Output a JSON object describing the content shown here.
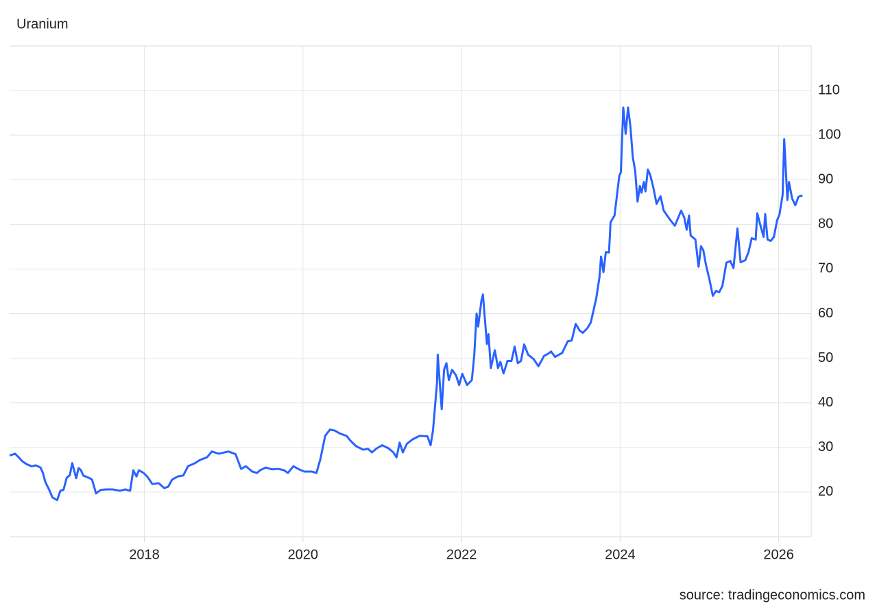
{
  "chart_data": {
    "type": "line",
    "title": "Uranium",
    "source": "source: tradingeconomics.com",
    "color": "#2962ff",
    "grid": true,
    "xlim": [
      2016.3,
      2026.41
    ],
    "ylim": [
      10,
      120
    ],
    "xticks": [
      2018,
      2020,
      2022,
      2024,
      2026
    ],
    "yticks": [
      20,
      30,
      40,
      50,
      60,
      70,
      80,
      90,
      100,
      110
    ],
    "x": [
      2016.3,
      2016.37,
      2016.42,
      2016.46,
      2016.52,
      2016.58,
      2016.63,
      2016.69,
      2016.72,
      2016.75,
      2016.8,
      2016.84,
      2016.9,
      2016.94,
      2016.98,
      2017.02,
      2017.06,
      2017.09,
      2017.14,
      2017.17,
      2017.2,
      2017.23,
      2017.3,
      2017.34,
      2017.39,
      2017.45,
      2017.52,
      2017.6,
      2017.69,
      2017.76,
      2017.82,
      2017.86,
      2017.9,
      2017.93,
      2017.99,
      2018.04,
      2018.1,
      2018.18,
      2018.25,
      2018.3,
      2018.35,
      2018.42,
      2018.49,
      2018.55,
      2018.64,
      2018.7,
      2018.79,
      2018.85,
      2018.94,
      2019.06,
      2019.15,
      2019.22,
      2019.28,
      2019.36,
      2019.42,
      2019.46,
      2019.53,
      2019.61,
      2019.69,
      2019.76,
      2019.81,
      2019.88,
      2019.95,
      2020.02,
      2020.11,
      2020.17,
      2020.22,
      2020.28,
      2020.34,
      2020.4,
      2020.47,
      2020.55,
      2020.6,
      2020.67,
      2020.76,
      2020.82,
      2020.87,
      2020.93,
      2021.0,
      2021.08,
      2021.14,
      2021.18,
      2021.22,
      2021.26,
      2021.31,
      2021.38,
      2021.47,
      2021.57,
      2021.61,
      2021.64,
      2021.69,
      2021.7,
      2021.73,
      2021.75,
      2021.78,
      2021.81,
      2021.84,
      2021.88,
      2021.93,
      2021.97,
      2022.01,
      2022.07,
      2022.13,
      2022.16,
      2022.19,
      2022.21,
      2022.25,
      2022.27,
      2022.32,
      2022.34,
      2022.37,
      2022.42,
      2022.46,
      2022.49,
      2022.53,
      2022.58,
      2022.63,
      2022.67,
      2022.71,
      2022.75,
      2022.79,
      2022.84,
      2022.91,
      2022.97,
      2023.01,
      2023.04,
      2023.1,
      2023.13,
      2023.18,
      2023.27,
      2023.34,
      2023.39,
      2023.44,
      2023.49,
      2023.53,
      2023.59,
      2023.63,
      2023.67,
      2023.7,
      2023.74,
      2023.76,
      2023.79,
      2023.82,
      2023.86,
      2023.88,
      2023.93,
      2023.99,
      2024.01,
      2024.04,
      2024.07,
      2024.1,
      2024.13,
      2024.16,
      2024.19,
      2024.22,
      2024.25,
      2024.27,
      2024.3,
      2024.32,
      2024.35,
      2024.38,
      2024.42,
      2024.46,
      2024.51,
      2024.55,
      2024.6,
      2024.65,
      2024.69,
      2024.74,
      2024.77,
      2024.81,
      2024.84,
      2024.87,
      2024.89,
      2024.95,
      2024.99,
      2025.02,
      2025.05,
      2025.08,
      2025.13,
      2025.17,
      2025.21,
      2025.25,
      2025.29,
      2025.34,
      2025.39,
      2025.43,
      2025.46,
      2025.48,
      2025.52,
      2025.58,
      2025.62,
      2025.66,
      2025.71,
      2025.73,
      2025.78,
      2025.81,
      2025.83,
      2025.86,
      2025.9,
      2025.94,
      2025.98,
      2026.01,
      2026.05,
      2026.07,
      2026.11,
      2026.13,
      2026.17,
      2026.21,
      2026.25,
      2026.3
    ],
    "values": [
      28.2,
      28.6,
      27.7,
      26.9,
      26.2,
      25.8,
      26.0,
      25.5,
      24.3,
      22.3,
      20.5,
      18.8,
      18.2,
      20.3,
      20.5,
      23.2,
      23.8,
      26.5,
      23.1,
      25.4,
      24.9,
      23.7,
      23.2,
      22.8,
      19.7,
      20.5,
      20.6,
      20.6,
      20.3,
      20.6,
      20.3,
      24.9,
      23.5,
      24.9,
      24.3,
      23.4,
      21.8,
      22.0,
      20.9,
      21.2,
      22.8,
      23.5,
      23.7,
      25.8,
      26.5,
      27.2,
      27.8,
      29.1,
      28.6,
      29.1,
      28.5,
      25.2,
      25.8,
      24.6,
      24.3,
      24.9,
      25.5,
      25.1,
      25.2,
      24.9,
      24.3,
      25.8,
      25.1,
      24.6,
      24.6,
      24.3,
      27.4,
      32.6,
      34.0,
      33.8,
      33.1,
      32.6,
      31.5,
      30.3,
      29.5,
      29.7,
      28.9,
      29.8,
      30.5,
      29.8,
      28.9,
      27.8,
      31.1,
      28.9,
      30.8,
      31.8,
      32.6,
      32.5,
      30.5,
      33.8,
      44.3,
      50.8,
      43.4,
      38.6,
      47.4,
      48.9,
      45.1,
      47.4,
      46.2,
      44.0,
      46.5,
      44.0,
      45.1,
      50.5,
      60.0,
      57.1,
      62.8,
      64.3,
      53.2,
      55.4,
      47.8,
      51.8,
      47.8,
      49.2,
      46.6,
      49.4,
      49.4,
      52.6,
      48.9,
      49.4,
      53.1,
      50.8,
      49.8,
      48.2,
      49.5,
      50.5,
      51.1,
      51.5,
      50.3,
      51.2,
      53.8,
      54.0,
      57.7,
      56.2,
      55.7,
      56.8,
      58.0,
      61.1,
      63.5,
      68.2,
      72.8,
      69.3,
      73.8,
      73.7,
      80.5,
      82.0,
      90.9,
      91.7,
      106.2,
      100.3,
      106.2,
      102.0,
      95.1,
      92.0,
      85.1,
      88.6,
      87.1,
      89.5,
      87.4,
      92.3,
      91.1,
      88.2,
      84.6,
      86.3,
      83.1,
      81.8,
      80.6,
      79.7,
      81.8,
      83.1,
      81.5,
      78.8,
      82.0,
      77.5,
      76.6,
      70.5,
      75.1,
      74.2,
      71.2,
      67.4,
      64.0,
      65.1,
      64.8,
      66.2,
      71.4,
      71.8,
      70.2,
      75.5,
      79.1,
      71.5,
      72.0,
      73.8,
      76.9,
      76.6,
      82.5,
      79.1,
      77.2,
      82.3,
      76.6,
      76.3,
      77.2,
      80.9,
      82.2,
      86.6,
      99.1,
      85.5,
      89.5,
      85.8,
      84.3,
      86.2,
      86.5
    ]
  }
}
